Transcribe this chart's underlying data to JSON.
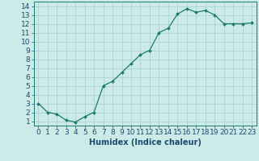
{
  "x": [
    0,
    1,
    2,
    3,
    4,
    5,
    6,
    7,
    8,
    9,
    10,
    11,
    12,
    13,
    14,
    15,
    16,
    17,
    18,
    19,
    20,
    21,
    22,
    23
  ],
  "y": [
    3.0,
    2.0,
    1.8,
    1.1,
    0.9,
    1.5,
    2.0,
    5.0,
    5.5,
    6.5,
    7.5,
    8.5,
    9.0,
    11.0,
    11.5,
    13.1,
    13.7,
    13.3,
    13.5,
    13.0,
    12.0,
    12.0,
    12.0,
    12.1
  ],
  "line_color": "#1a7a6e",
  "marker": "D",
  "marker_size": 2.0,
  "bg_color": "#cceae7",
  "grid_color": "#aad4d0",
  "xlabel": "Humidex (Indice chaleur)",
  "xlim": [
    -0.5,
    23.5
  ],
  "ylim": [
    0.5,
    14.5
  ],
  "xtick_labels": [
    "0",
    "1",
    "2",
    "3",
    "4",
    "5",
    "6",
    "7",
    "8",
    "9",
    "10",
    "11",
    "12",
    "13",
    "14",
    "15",
    "16",
    "17",
    "18",
    "19",
    "20",
    "21",
    "22",
    "23"
  ],
  "ytick_values": [
    1,
    2,
    3,
    4,
    5,
    6,
    7,
    8,
    9,
    10,
    11,
    12,
    13,
    14
  ],
  "font_color": "#1a4a6e",
  "xlabel_fontsize": 7,
  "tick_fontsize": 6.5
}
